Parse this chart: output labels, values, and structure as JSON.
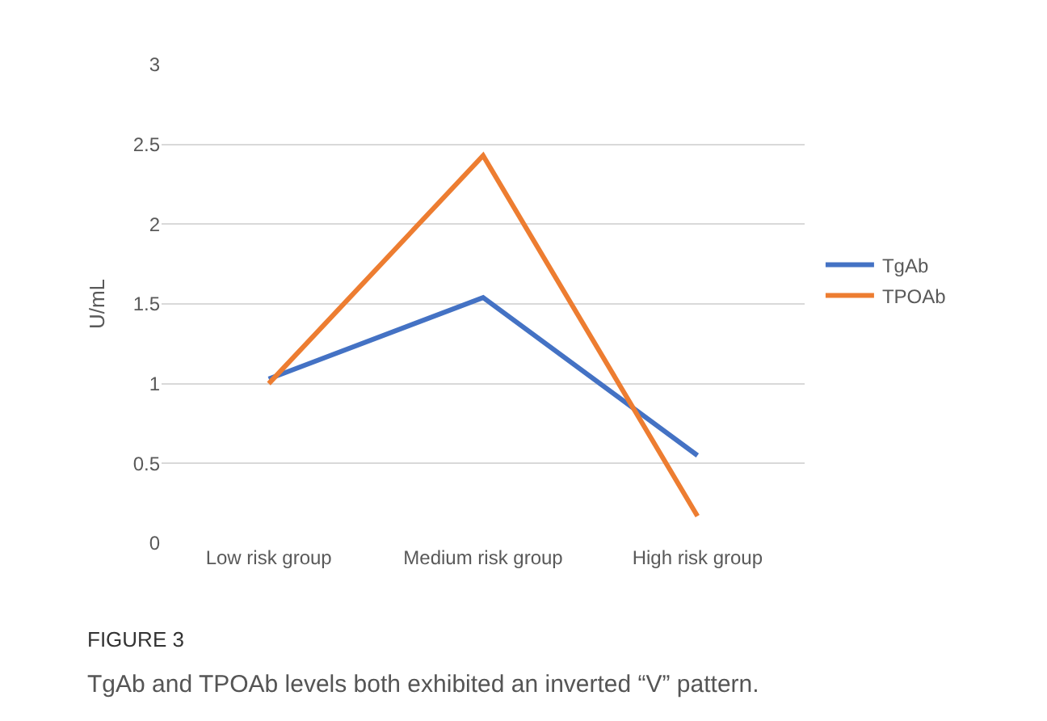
{
  "chart_data": {
    "type": "line",
    "ylabel": "U/mL",
    "categories": [
      "Low risk group",
      "Medium risk group",
      "High risk group"
    ],
    "series": [
      {
        "name": "TgAb",
        "color": "#4472c4",
        "values": [
          1.03,
          1.54,
          0.55
        ]
      },
      {
        "name": "TPOAb",
        "color": "#ed7d31",
        "values": [
          1.0,
          2.43,
          0.17
        ]
      }
    ],
    "ylim": [
      0,
      3
    ],
    "yticks": [
      0,
      0.5,
      1,
      1.5,
      2,
      2.5,
      3
    ],
    "grid": "y",
    "legend": "right",
    "marker": "none",
    "line_style": "solid",
    "annotations": [
      "FIGURE 3",
      "TgAb and TPOAb levels both exhibited an inverted “V” pattern."
    ]
  }
}
